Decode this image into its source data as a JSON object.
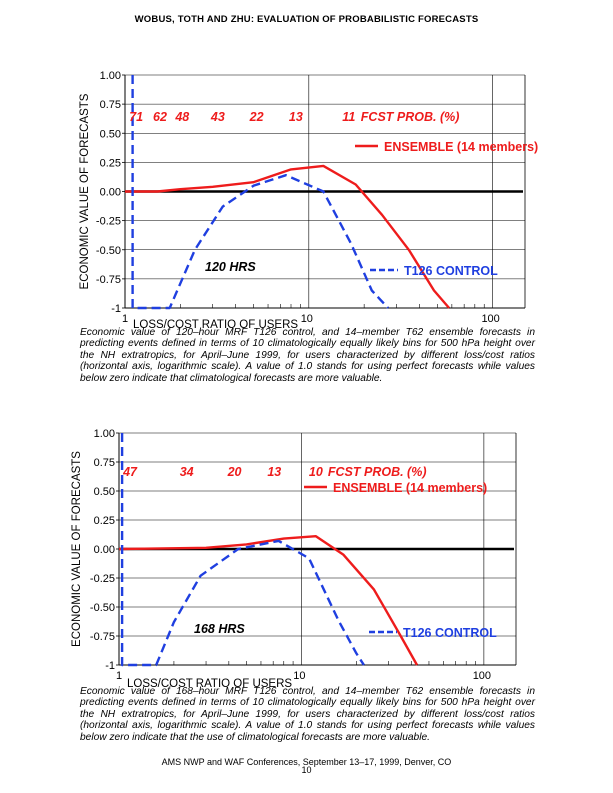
{
  "header": {
    "title": "WOBUS, TOTH AND ZHU:  EVALUATION OF PROBABILISTIC FORECASTS"
  },
  "captions": [
    "Economic value of 120–hour MRF T126 control, and 14–member T62 ensemble  forecasts in predicting events defined in terms of 10 climatologically equally likely bins for 500 hPa height over the NH extratropics, for April–June 1999, for users characterized by different loss/cost ratios (horizontal axis, logarithmic scale). A value of 1.0 stands for using perfect forecasts while values below zero indicate that climatological forecasts are more valuable.",
    "Economic value of 168–hour MRF T126 control, and 14–member T62 ensemble  forecasts in predicting events defined in terms of 10 climatologically equally likely bins for 500 hPa height over the NH extratropics, for April–June 1999, for users characterized by different loss/cost ratios (horizontal axis, logarithmic scale). A value of 1.0 stands for using perfect forecasts while values below zero indicate that the use of climatological forecasts are more valuable."
  ],
  "footer": {
    "conference": "AMS NWP and WAF Conferences, September 13–17, 1999, Denver, CO",
    "page": "10"
  },
  "colors": {
    "ensemble": "#ee1c1c",
    "control": "#1f3fe0",
    "zero_line": "#000000"
  },
  "chart_data": [
    {
      "type": "line",
      "xscale": "log",
      "xlim": [
        1,
        150
      ],
      "ylim": [
        -1,
        1
      ],
      "ylabel": "ECONOMIC VALUE OF FORECASTS",
      "xlabel": "LOSS/COST RATIO OF USERS",
      "x_ticks": [
        "1",
        "10",
        "100"
      ],
      "y_ticks": [
        "1.00",
        "0.75",
        "0.50",
        "0.25",
        "0.00",
        "-0.25",
        "-0.50",
        "-0.75",
        "-1"
      ],
      "lead_time_label": "120 HRS",
      "prob_labels": [
        {
          "text": "71",
          "x": 1.15
        },
        {
          "text": "62",
          "x": 1.55
        },
        {
          "text": "48",
          "x": 2.05
        },
        {
          "text": "43",
          "x": 3.2
        },
        {
          "text": "22",
          "x": 5.2
        },
        {
          "text": "13",
          "x": 8.5
        },
        {
          "text": "11",
          "x": 16.5
        }
      ],
      "prob_title": "FCST PROB. (%)",
      "series": [
        {
          "name": "ENSEMBLE (14 members)",
          "color": "#ee1c1c",
          "dash": "solid",
          "x": [
            1.0,
            1.5,
            2.0,
            3.0,
            5.0,
            8.0,
            12.0,
            18.0,
            25.0,
            35.0,
            48.0,
            58.0
          ],
          "y": [
            0.0,
            0.0,
            0.02,
            0.04,
            0.08,
            0.19,
            0.22,
            0.06,
            -0.2,
            -0.5,
            -0.85,
            -1.0
          ]
        },
        {
          "name": "T126 CONTROL",
          "color": "#1f3fe0",
          "dash": "dashed",
          "x": [
            1.1,
            1.1,
            1.75,
            2.4,
            3.4,
            5.0,
            7.5,
            12.0,
            17.0,
            22.0,
            27.0
          ],
          "y": [
            1.0,
            -1.0,
            -1.0,
            -0.5,
            -0.13,
            0.05,
            0.14,
            0.0,
            -0.45,
            -0.85,
            -1.0
          ]
        }
      ]
    },
    {
      "type": "line",
      "xscale": "log",
      "xlim": [
        1,
        150
      ],
      "ylim": [
        -1,
        1
      ],
      "ylabel": "ECONOMIC VALUE OF FORECASTS",
      "xlabel": "LOSS/COST RATIO OF USERS",
      "x_ticks": [
        "1",
        "10",
        "100"
      ],
      "y_ticks": [
        "1.00",
        "0.75",
        "0.50",
        "0.25",
        "0.00",
        "-0.25",
        "-0.50",
        "-0.75",
        "-1"
      ],
      "lead_time_label": "168 HRS",
      "prob_labels": [
        {
          "text": "47",
          "x": 1.15
        },
        {
          "text": "34",
          "x": 2.35
        },
        {
          "text": "20",
          "x": 4.3
        },
        {
          "text": "13",
          "x": 7.1
        },
        {
          "text": "10",
          "x": 12.0
        }
      ],
      "prob_title": "FCST PROB. (%)",
      "series": [
        {
          "name": "ENSEMBLE (14 members)",
          "color": "#ee1c1c",
          "dash": "solid",
          "x": [
            1.0,
            3.0,
            5.0,
            8.0,
            12.0,
            17.0,
            25.0,
            35.0,
            43.0
          ],
          "y": [
            0.0,
            0.01,
            0.04,
            0.09,
            0.11,
            -0.05,
            -0.35,
            -0.75,
            -1.0
          ]
        },
        {
          "name": "T126 CONTROL",
          "color": "#1f3fe0",
          "dash": "dashed",
          "x": [
            1.04,
            1.04,
            1.6,
            2.0,
            2.8,
            4.5,
            7.5,
            11.0,
            16.0,
            20.0,
            22.0
          ],
          "y": [
            1.0,
            -1.0,
            -1.0,
            -0.63,
            -0.23,
            0.0,
            0.07,
            -0.08,
            -0.62,
            -0.9,
            -1.0
          ]
        }
      ]
    }
  ]
}
